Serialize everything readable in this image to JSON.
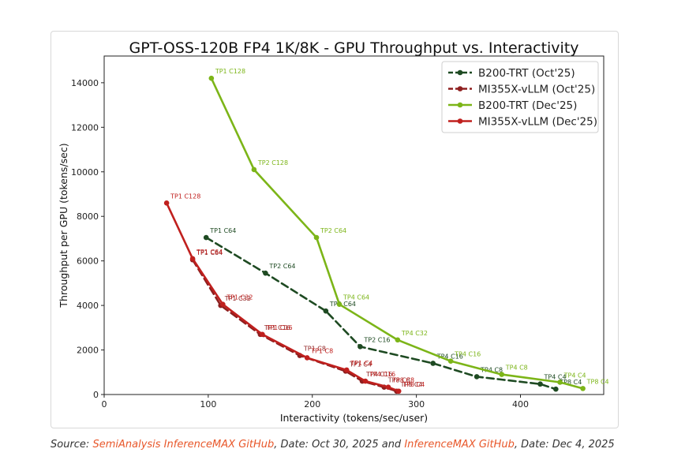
{
  "chart_data": {
    "type": "line",
    "title": "GPT-OSS-120B FP4 1K/8K - GPU Throughput vs. Interactivity",
    "xlabel": "Interactivity (tokens/sec/user)",
    "ylabel": "Throughput per GPU (tokens/sec)",
    "xlim": [
      0,
      480
    ],
    "ylim": [
      0,
      15200
    ],
    "xticks": [
      0,
      100,
      200,
      300,
      400
    ],
    "yticks": [
      0,
      2000,
      4000,
      6000,
      8000,
      10000,
      12000,
      14000
    ],
    "grid": false,
    "legend_position": "top-right",
    "series": [
      {
        "name": "B200-TRT (Oct'25)",
        "color": "#1e4a22",
        "dash": true,
        "points": [
          {
            "x": 98,
            "y": 7050,
            "label": "TP1 C64"
          },
          {
            "x": 155,
            "y": 5450,
            "label": "TP2 C64"
          },
          {
            "x": 213,
            "y": 3750,
            "label": "TP4 C64"
          },
          {
            "x": 246,
            "y": 2150,
            "label": "TP2 C16"
          },
          {
            "x": 316,
            "y": 1400,
            "label": "TP4 C16"
          },
          {
            "x": 358,
            "y": 800,
            "label": "TP4 C8"
          },
          {
            "x": 419,
            "y": 470,
            "label": "TP4 C4"
          },
          {
            "x": 434,
            "y": 240,
            "label": "TP8 C4"
          }
        ]
      },
      {
        "name": "MI355X-vLLM (Oct'25)",
        "color": "#8e1f1f",
        "dash": true,
        "points": [
          {
            "x": 85,
            "y": 6050,
            "label": "TP1 C64"
          },
          {
            "x": 112,
            "y": 4000,
            "label": "TP1 C32"
          },
          {
            "x": 150,
            "y": 2700,
            "label": "TP1 C16"
          },
          {
            "x": 188,
            "y": 1750,
            "label": "TP1 C8"
          },
          {
            "x": 232,
            "y": 1050,
            "label": "TP1 C4"
          },
          {
            "x": 248,
            "y": 600,
            "label": "TP4 C16"
          },
          {
            "x": 269,
            "y": 330,
            "label": "TP8 C8"
          },
          {
            "x": 281,
            "y": 150,
            "label": "TP8 C4"
          }
        ]
      },
      {
        "name": "B200-TRT (Dec'25)",
        "color": "#7cb518",
        "dash": false,
        "points": [
          {
            "x": 103,
            "y": 14200,
            "label": "TP1 C128"
          },
          {
            "x": 144,
            "y": 10100,
            "label": "TP2 C128"
          },
          {
            "x": 204,
            "y": 7050,
            "label": "TP2 C64"
          },
          {
            "x": 226,
            "y": 4050,
            "label": "TP4 C64"
          },
          {
            "x": 282,
            "y": 2450,
            "label": "TP4 C32"
          },
          {
            "x": 333,
            "y": 1500,
            "label": "TP4 C16"
          },
          {
            "x": 382,
            "y": 900,
            "label": "TP4 C8"
          },
          {
            "x": 438,
            "y": 550,
            "label": "TP4 C4"
          },
          {
            "x": 460,
            "y": 270,
            "label": "TP8 C4"
          }
        ]
      },
      {
        "name": "MI355X-vLLM (Dec'25)",
        "color": "#c0201e",
        "dash": false,
        "points": [
          {
            "x": 60,
            "y": 8600,
            "label": "TP1 C128"
          },
          {
            "x": 85,
            "y": 6100,
            "label": "TP1 C64"
          },
          {
            "x": 114,
            "y": 4050,
            "label": "TP1 C32"
          },
          {
            "x": 152,
            "y": 2700,
            "label": "TP1 C16"
          },
          {
            "x": 195,
            "y": 1650,
            "label": "TP1 C8"
          },
          {
            "x": 233,
            "y": 1100,
            "label": "TP1 C4"
          },
          {
            "x": 251,
            "y": 600,
            "label": "TP4 C16"
          },
          {
            "x": 273,
            "y": 330,
            "label": "TP8 C8"
          },
          {
            "x": 283,
            "y": 150,
            "label": "TP8 C4"
          }
        ]
      }
    ]
  },
  "source": {
    "prefix": "Source: ",
    "link1": "SemiAnalysis InferenceMAX GitHub",
    "mid": ", Date: Oct 30, 2025 and ",
    "link2": "InferenceMAX GitHub",
    "suffix": ", Date: Dec 4, 2025"
  }
}
